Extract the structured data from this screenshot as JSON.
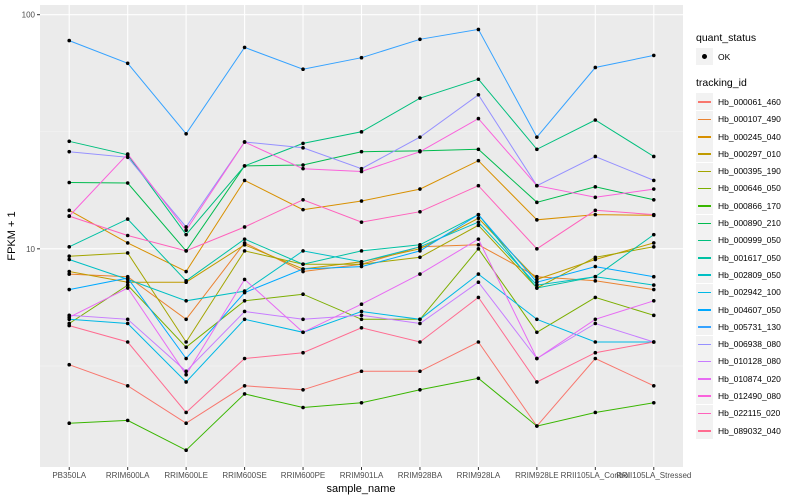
{
  "chart_data": {
    "type": "line",
    "title": "",
    "xlabel": "sample_name",
    "ylabel": "FPKM + 1",
    "yscale": "log10",
    "ylim": [
      1.17,
      110
    ],
    "yticks": [
      10,
      100
    ],
    "ytick_labels": [
      "10",
      "100"
    ],
    "grid": true,
    "categories": [
      "PB350LA",
      "RRIM600LA",
      "RRIM600LE",
      "RRIM600SE",
      "RRIM600PE",
      "RRIM901LA",
      "RRIM928BA",
      "RRIM928LA",
      "RRIM928LE",
      "RRII105LA_Control",
      "RRII105LA_Stressed"
    ],
    "legend": {
      "position": "right",
      "quant_status_title": "quant_status",
      "quant_status_items": [
        "OK"
      ],
      "tracking_title": "tracking_id"
    },
    "series": [
      {
        "name": "Hb_000061_460",
        "color": "#F8766D",
        "values": [
          3.2,
          2.6,
          1.8,
          2.6,
          2.5,
          3.0,
          3.0,
          4.0,
          1.75,
          3.4,
          2.6
        ]
      },
      {
        "name": "Hb_000107_490",
        "color": "#EA8331",
        "values": [
          7.8,
          7.6,
          5.0,
          10.6,
          8.0,
          8.6,
          10.2,
          10.4,
          7.6,
          7.3,
          6.7
        ]
      },
      {
        "name": "Hb_000245_040",
        "color": "#D89000",
        "values": [
          14.6,
          10.6,
          8.0,
          19.6,
          14.7,
          16.0,
          18.0,
          23.8,
          13.3,
          14.0,
          13.9
        ]
      },
      {
        "name": "Hb_000297_010",
        "color": "#C09B00",
        "values": [
          8.0,
          7.2,
          7.2,
          10.4,
          8.2,
          8.8,
          10.0,
          13.5,
          7.4,
          9.0,
          10.6
        ]
      },
      {
        "name": "Hb_000395_190",
        "color": "#A3A500",
        "values": [
          9.3,
          9.6,
          4.0,
          9.8,
          8.6,
          8.6,
          9.2,
          12.6,
          6.8,
          9.2,
          10.2
        ]
      },
      {
        "name": "Hb_000646_050",
        "color": "#7CAE00",
        "values": [
          4.8,
          7.0,
          3.8,
          6.0,
          6.4,
          5.0,
          5.0,
          10.0,
          4.4,
          6.2,
          5.2
        ]
      },
      {
        "name": "Hb_000866_170",
        "color": "#39B600",
        "values": [
          1.8,
          1.85,
          1.38,
          2.4,
          2.1,
          2.2,
          2.5,
          2.8,
          1.75,
          2.0,
          2.2
        ]
      },
      {
        "name": "Hb_000890_210",
        "color": "#00BB4E",
        "values": [
          19.2,
          19.1,
          9.8,
          22.6,
          22.8,
          26.0,
          26.2,
          26.6,
          15.8,
          18.4,
          16.2
        ]
      },
      {
        "name": "Hb_000999_050",
        "color": "#00BF7D",
        "values": [
          28.8,
          25.2,
          11.5,
          22.6,
          28.2,
          31.6,
          44.0,
          53.0,
          26.6,
          35.5,
          24.8
        ]
      },
      {
        "name": "Hb_001617_050",
        "color": "#00C1A3",
        "values": [
          10.2,
          13.4,
          7.3,
          11.0,
          8.6,
          9.8,
          10.4,
          14.0,
          6.8,
          7.6,
          11.5
        ]
      },
      {
        "name": "Hb_002809_050",
        "color": "#00BFC4",
        "values": [
          9.0,
          7.4,
          6.0,
          6.6,
          9.8,
          8.8,
          10.2,
          13.0,
          7.0,
          7.6,
          7.0
        ]
      },
      {
        "name": "Hb_002942_100",
        "color": "#00B8E5",
        "values": [
          5.0,
          4.8,
          2.7,
          5.0,
          4.4,
          5.4,
          5.0,
          7.8,
          5.0,
          4.0,
          4.0
        ]
      },
      {
        "name": "Hb_004607_050",
        "color": "#00A9FF",
        "values": [
          6.7,
          7.5,
          3.4,
          6.5,
          8.2,
          8.4,
          9.8,
          14.0,
          7.2,
          8.4,
          7.6
        ]
      },
      {
        "name": "Hb_005731_130",
        "color": "#35A2FF",
        "values": [
          77.5,
          62.0,
          31.0,
          72.5,
          58.5,
          65.5,
          78.5,
          86.5,
          30.0,
          59.5,
          67.0
        ]
      },
      {
        "name": "Hb_006938_080",
        "color": "#9590FF",
        "values": [
          26.0,
          24.6,
          12.4,
          28.6,
          27.0,
          22.0,
          30.0,
          45.5,
          18.6,
          24.8,
          19.6
        ]
      },
      {
        "name": "Hb_010128_080",
        "color": "#C77CFF",
        "values": [
          5.2,
          5.0,
          3.0,
          5.4,
          5.0,
          5.2,
          4.8,
          7.2,
          3.4,
          4.8,
          4.0
        ]
      },
      {
        "name": "Hb_010874_020",
        "color": "#E76BF3",
        "values": [
          5.1,
          6.8,
          2.9,
          7.4,
          4.4,
          5.8,
          7.8,
          11.0,
          3.4,
          5.0,
          6.0
        ]
      },
      {
        "name": "Hb_012490_080",
        "color": "#FA62DB",
        "values": [
          13.8,
          25.4,
          12.0,
          28.6,
          22.0,
          21.4,
          26.0,
          36.0,
          18.6,
          16.6,
          18.0
        ]
      },
      {
        "name": "Hb_022115_020",
        "color": "#FF62BC",
        "values": [
          13.8,
          11.4,
          9.8,
          12.4,
          16.2,
          13.0,
          14.4,
          18.6,
          10.0,
          14.6,
          14.0
        ]
      },
      {
        "name": "Hb_089032_040",
        "color": "#FF6C91",
        "values": [
          4.7,
          4.0,
          2.0,
          3.4,
          3.6,
          4.6,
          4.0,
          6.2,
          2.7,
          3.6,
          4.0
        ]
      }
    ]
  }
}
